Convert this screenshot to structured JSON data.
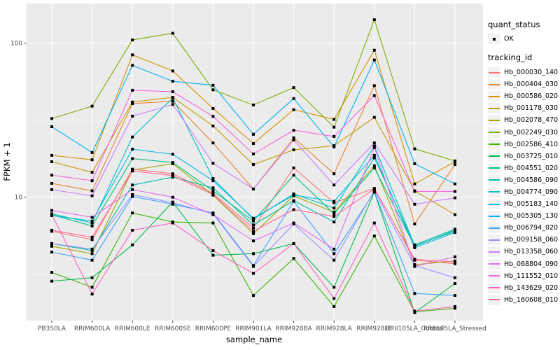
{
  "chart_data": {
    "type": "line",
    "xlabel": "sample_name",
    "ylabel": "FPKM + 1",
    "y_scale": "log10",
    "y_major_ticks": [
      100,
      10
    ],
    "y_minor_ticks": [
      31.62,
      3.162
    ],
    "marker": {
      "shape": "square",
      "color": "#000000",
      "size": 4
    },
    "panel_bg": "#ebebeb",
    "grid_color": "#ffffff",
    "categories": [
      "PB350LA",
      "RRIM600LA",
      "RRIM600LE",
      "RRIM600SE",
      "RRIM600PE",
      "RRIM901LA",
      "RRIM928BA",
      "RRIM928LA",
      "RRIM928LE",
      "RRII105LA_Control",
      "RRII105LA_Stressed"
    ],
    "series": [
      {
        "name": "Hb_000030_140",
        "color": "#F8766D",
        "values": [
          6.0,
          5.3,
          15.2,
          14.2,
          10.6,
          6.3,
          15.5,
          9.2,
          11.4,
          3.9,
          3.7
        ]
      },
      {
        "name": "Hb_000404_030",
        "color": "#EA8331",
        "values": [
          12.3,
          11.0,
          40.5,
          42.0,
          22.5,
          11.3,
          24.3,
          14.2,
          53.0,
          6.7,
          16.3
        ]
      },
      {
        "name": "Hb_000586_020",
        "color": "#D89000",
        "values": [
          18.7,
          17.5,
          84.0,
          66.0,
          37.7,
          22.3,
          37.0,
          32.0,
          90.0,
          12.2,
          17.0
        ]
      },
      {
        "name": "Hb_001178_030",
        "color": "#C09B00",
        "values": [
          17.0,
          14.5,
          41.5,
          44.5,
          29.0,
          16.3,
          20.3,
          21.6,
          33.0,
          11.0,
          7.7
        ]
      },
      {
        "name": "Hb_002078_470",
        "color": "#A3A500",
        "values": [
          4.8,
          4.3,
          15.0,
          16.5,
          10.3,
          5.8,
          10.2,
          8.0,
          16.0,
          3.65,
          3.85
        ]
      },
      {
        "name": "Hb_002249_030",
        "color": "#7CAE00",
        "values": [
          32.4,
          39.0,
          105.0,
          116.0,
          49.8,
          39.7,
          51.5,
          28.5,
          142.0,
          20.6,
          17.2
        ]
      },
      {
        "name": "Hb_002586_410",
        "color": "#39B600",
        "values": [
          3.25,
          2.6,
          7.9,
          6.9,
          6.8,
          2.3,
          4.0,
          1.95,
          5.6,
          1.8,
          1.9
        ]
      },
      {
        "name": "Hb_003725_010",
        "color": "#00BB4E",
        "values": [
          2.85,
          3.0,
          4.9,
          9.3,
          4.2,
          4.3,
          5.0,
          2.6,
          10.8,
          1.78,
          2.75
        ]
      },
      {
        "name": "Hb_004551_020",
        "color": "#00BF7D",
        "values": [
          7.7,
          6.5,
          17.8,
          16.8,
          11.0,
          7.0,
          13.9,
          7.8,
          15.5,
          4.8,
          6.1
        ]
      },
      {
        "name": "Hb_004586_090",
        "color": "#00C1A3",
        "values": [
          5.0,
          4.5,
          12.0,
          13.5,
          11.5,
          6.6,
          9.5,
          6.9,
          18.0,
          4.9,
          6.2
        ]
      },
      {
        "name": "Hb_004774_090",
        "color": "#00BFC4",
        "values": [
          7.8,
          6.8,
          24.6,
          44.0,
          13.2,
          7.2,
          10.5,
          8.5,
          21.5,
          4.85,
          6.0
        ]
      },
      {
        "name": "Hb_005183_140",
        "color": "#00BAE0",
        "values": [
          7.6,
          7.0,
          20.5,
          19.0,
          12.8,
          7.3,
          10.3,
          9.4,
          18.7,
          4.7,
          5.9
        ]
      },
      {
        "name": "Hb_005305_130",
        "color": "#00B0F6",
        "values": [
          28.7,
          19.5,
          71.8,
          56.6,
          53.3,
          25.6,
          43.7,
          21.2,
          77.8,
          16.5,
          12.2
        ]
      },
      {
        "name": "Hb_006794_020",
        "color": "#35A2FF",
        "values": [
          4.4,
          3.9,
          10.1,
          9.0,
          7.9,
          3.6,
          9.4,
          4.3,
          10.8,
          2.37,
          2.3
        ]
      },
      {
        "name": "Hb_009158_060",
        "color": "#9590FF",
        "values": [
          5.0,
          4.6,
          10.4,
          9.2,
          7.8,
          3.55,
          6.7,
          3.9,
          11.0,
          3.6,
          3.0
        ]
      },
      {
        "name": "Hb_013358_060",
        "color": "#C77CFF",
        "values": [
          11.2,
          10.2,
          33.6,
          40.0,
          16.6,
          11.3,
          23.5,
          12.0,
          22.5,
          9.0,
          9.9
        ]
      },
      {
        "name": "Hb_068804_090",
        "color": "#E76BF3",
        "values": [
          8.2,
          7.4,
          11.2,
          10.0,
          7.7,
          5.2,
          6.8,
          4.6,
          21.0,
          3.55,
          4.1
        ]
      },
      {
        "name": "Hb_111552_010",
        "color": "#FA62DB",
        "values": [
          13.9,
          12.8,
          49.5,
          48.4,
          33.5,
          19.1,
          27.2,
          24.8,
          45.7,
          10.9,
          10.9
        ]
      },
      {
        "name": "Hb_143629_020",
        "color": "#FF62BC",
        "values": [
          7.7,
          2.35,
          6.1,
          6.8,
          4.5,
          3.2,
          5.0,
          2.2,
          6.8,
          1.82,
          1.95
        ]
      },
      {
        "name": "Hb_160608_010",
        "color": "#FF6A98",
        "values": [
          6.1,
          5.5,
          14.8,
          13.8,
          10.4,
          6.0,
          8.3,
          7.5,
          11.3,
          3.95,
          3.8
        ]
      }
    ]
  },
  "legend": {
    "quant_status_title": "quant_status",
    "ok_label": "OK",
    "tracking_id_title": "tracking_id"
  }
}
